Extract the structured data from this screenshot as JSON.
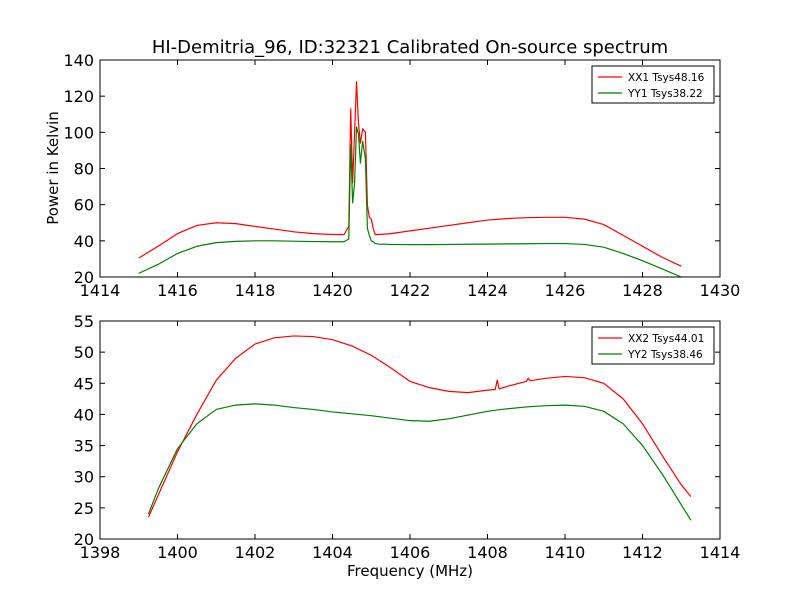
{
  "chart_data": [
    {
      "type": "line",
      "title": "HI-Demitria_96, ID:32321 Calibrated On-source spectrum",
      "xlabel": "",
      "ylabel": "Power in Kelvin",
      "xlim": [
        1414,
        1430
      ],
      "ylim": [
        20,
        140
      ],
      "xticks": [
        "1414",
        "1416",
        "1418",
        "1420",
        "1422",
        "1424",
        "1426",
        "1428",
        "1430"
      ],
      "yticks": [
        "20",
        "40",
        "60",
        "80",
        "100",
        "120",
        "140"
      ],
      "grid": false,
      "legend_position": "top-right",
      "series": [
        {
          "name": "XX1 Tsys48.16",
          "color": "#ff0000",
          "x": [
            1415.0,
            1415.5,
            1416.0,
            1416.5,
            1417.0,
            1417.5,
            1418.0,
            1418.5,
            1419.0,
            1419.5,
            1420.0,
            1420.3,
            1420.42,
            1420.47,
            1420.52,
            1420.57,
            1420.62,
            1420.67,
            1420.72,
            1420.78,
            1420.85,
            1420.9,
            1420.95,
            1421.0,
            1421.05,
            1421.1,
            1421.2,
            1421.5,
            1422.0,
            1422.5,
            1423.0,
            1423.5,
            1424.0,
            1424.5,
            1425.0,
            1425.5,
            1426.0,
            1426.5,
            1427.0,
            1427.5,
            1428.0,
            1428.5,
            1429.0
          ],
          "y": [
            30.5,
            37,
            44,
            48.5,
            50,
            49.5,
            48,
            46.5,
            45,
            44,
            43.5,
            43.5,
            48,
            113,
            72,
            100,
            128,
            105,
            94,
            102,
            100,
            60,
            53,
            52,
            47,
            43.5,
            43.5,
            44,
            45.5,
            47,
            48.5,
            50,
            51.5,
            52.3,
            52.8,
            53,
            53,
            52,
            49,
            43,
            37,
            31,
            26
          ]
        },
        {
          "name": "YY1 Tsys38.22",
          "color": "#008000",
          "x": [
            1415.0,
            1415.5,
            1416.0,
            1416.5,
            1417.0,
            1417.5,
            1418.0,
            1418.5,
            1419.0,
            1419.5,
            1420.0,
            1420.3,
            1420.42,
            1420.47,
            1420.52,
            1420.57,
            1420.62,
            1420.67,
            1420.72,
            1420.78,
            1420.85,
            1420.9,
            1420.95,
            1421.0,
            1421.05,
            1421.1,
            1421.2,
            1421.5,
            1422.0,
            1422.5,
            1423.0,
            1423.5,
            1424.0,
            1424.5,
            1425.0,
            1425.5,
            1426.0,
            1426.5,
            1427.0,
            1427.5,
            1428.0,
            1428.5,
            1429.0
          ],
          "y": [
            22,
            27,
            33,
            37,
            39,
            39.7,
            40,
            40,
            39.8,
            39.6,
            39.5,
            39.5,
            41,
            93,
            61,
            72,
            103,
            99,
            83,
            95,
            85,
            47,
            43,
            40,
            39.5,
            38.5,
            38.2,
            38.0,
            37.9,
            37.9,
            38.0,
            38.1,
            38.2,
            38.3,
            38.4,
            38.5,
            38.5,
            38.0,
            36.5,
            33,
            29,
            24.5,
            20
          ]
        }
      ]
    },
    {
      "type": "line",
      "title": "",
      "xlabel": "Frequency (MHz)",
      "ylabel": "",
      "xlim": [
        1398,
        1414
      ],
      "ylim": [
        20,
        55
      ],
      "xticks": [
        "1398",
        "1400",
        "1402",
        "1404",
        "1406",
        "1408",
        "1410",
        "1412",
        "1414"
      ],
      "yticks": [
        "20",
        "25",
        "30",
        "35",
        "40",
        "45",
        "50",
        "55"
      ],
      "grid": false,
      "legend_position": "top-right",
      "series": [
        {
          "name": "XX2 Tsys44.01",
          "color": "#ff0000",
          "x": [
            1399.25,
            1399.5,
            1400.0,
            1400.5,
            1401.0,
            1401.5,
            1402.0,
            1402.5,
            1403.0,
            1403.5,
            1404.0,
            1404.5,
            1405.0,
            1405.5,
            1406.0,
            1406.5,
            1407.0,
            1407.5,
            1408.0,
            1408.2,
            1408.25,
            1408.3,
            1408.5,
            1409.0,
            1409.05,
            1409.1,
            1409.5,
            1410.0,
            1410.5,
            1411.0,
            1411.5,
            1412.0,
            1412.5,
            1413.0,
            1413.25
          ],
          "y": [
            23.5,
            27,
            34,
            40,
            45.5,
            49,
            51.3,
            52.3,
            52.6,
            52.5,
            52,
            51,
            49.5,
            47.5,
            45.3,
            44.3,
            43.7,
            43.5,
            43.9,
            44,
            45.5,
            44.1,
            44.5,
            45.3,
            45.8,
            45.4,
            45.8,
            46.1,
            45.9,
            45,
            42.5,
            38.5,
            33.5,
            28.7,
            26.8
          ]
        },
        {
          "name": "YY2 Tsys38.46",
          "color": "#008000",
          "x": [
            1399.25,
            1399.5,
            1400.0,
            1400.5,
            1401.0,
            1401.5,
            1402.0,
            1402.5,
            1403.0,
            1403.5,
            1404.0,
            1404.5,
            1405.0,
            1405.5,
            1406.0,
            1406.5,
            1407.0,
            1407.5,
            1408.0,
            1408.5,
            1409.0,
            1409.5,
            1410.0,
            1410.5,
            1411.0,
            1411.5,
            1412.0,
            1412.5,
            1413.0,
            1413.25
          ],
          "y": [
            24,
            28,
            34.5,
            38.5,
            40.8,
            41.5,
            41.7,
            41.5,
            41.1,
            40.8,
            40.4,
            40.1,
            39.8,
            39.4,
            39.0,
            38.9,
            39.3,
            39.9,
            40.5,
            40.9,
            41.2,
            41.4,
            41.5,
            41.3,
            40.5,
            38.5,
            35,
            30.5,
            25.5,
            23
          ]
        }
      ]
    }
  ]
}
